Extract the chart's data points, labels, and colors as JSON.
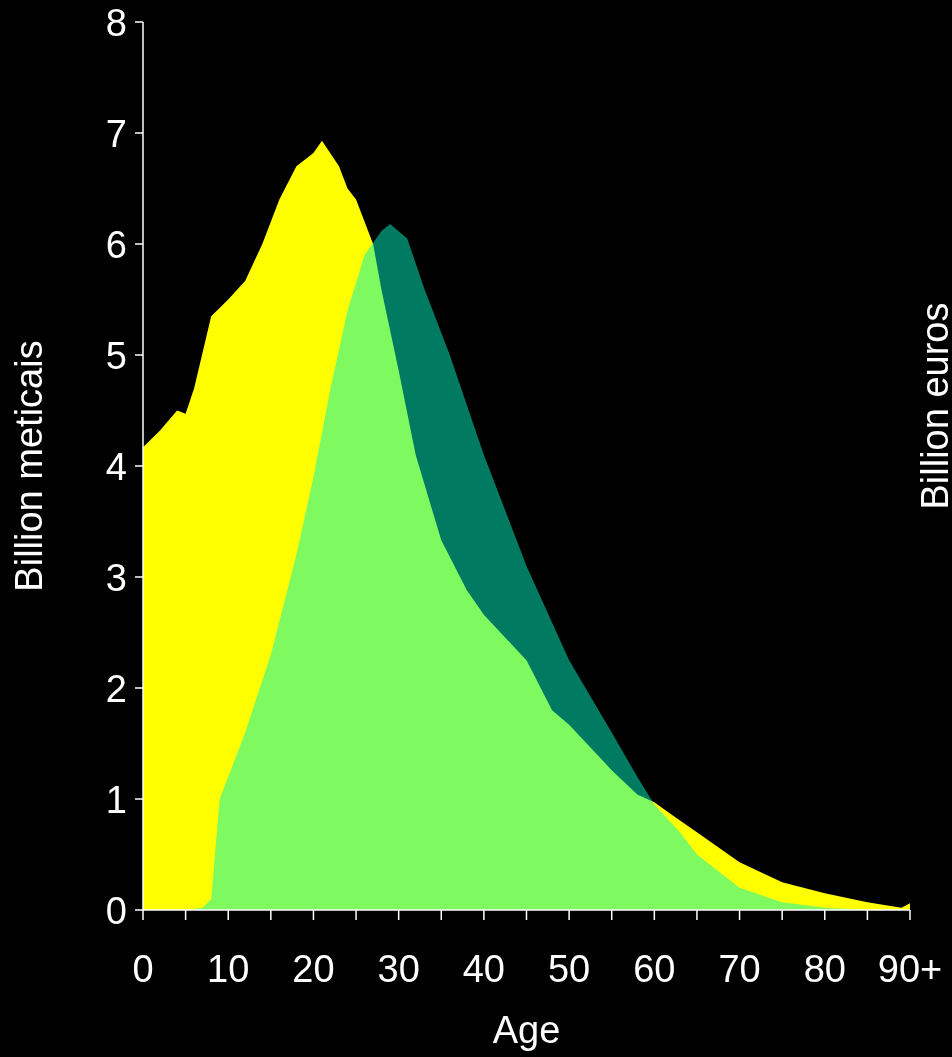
{
  "chart_data": {
    "type": "area",
    "xlabel": "Age",
    "ylabel": "Billion meticais",
    "y2label": "Billion euros",
    "xlim": [
      0,
      90
    ],
    "ylim": [
      0,
      8
    ],
    "xticks": [
      0,
      {
        "value": 5,
        "label": null
      },
      10,
      {
        "value": 15,
        "label": null
      },
      20,
      {
        "value": 25,
        "label": null
      },
      30,
      {
        "value": 35,
        "label": null
      },
      40,
      {
        "value": 45,
        "label": null
      },
      50,
      {
        "value": 55,
        "label": null
      },
      60,
      {
        "value": 65,
        "label": null
      },
      70,
      {
        "value": 75,
        "label": null
      },
      80,
      {
        "value": 85,
        "label": null
      },
      {
        "value": 90,
        "label": "90+"
      }
    ],
    "yticks": [
      0,
      1,
      2,
      3,
      4,
      5,
      6,
      7,
      8
    ],
    "grid": false,
    "series": [
      {
        "color": "#ffff00",
        "x": [
          0,
          2,
          4,
          5,
          6,
          8,
          10,
          12,
          14,
          16,
          18,
          20,
          21,
          23,
          24,
          25,
          27,
          28,
          30,
          32,
          35,
          38,
          40,
          45,
          48,
          50,
          55,
          58,
          60,
          62,
          65,
          70,
          75,
          80,
          85,
          89,
          90
        ],
        "values": [
          4.17,
          4.32,
          4.5,
          4.47,
          4.7,
          5.35,
          5.5,
          5.67,
          6.0,
          6.4,
          6.7,
          6.82,
          6.93,
          6.7,
          6.5,
          6.4,
          6.0,
          5.58,
          4.86,
          4.1,
          3.33,
          2.88,
          2.66,
          2.25,
          1.8,
          1.67,
          1.26,
          1.04,
          0.97,
          0.86,
          0.7,
          0.43,
          0.25,
          0.15,
          0.07,
          0.02,
          0.06
        ]
      },
      {
        "color": "#00f4c0",
        "x": [
          0,
          5,
          7,
          8,
          9,
          12,
          15,
          18,
          20,
          22,
          24,
          26,
          28,
          29,
          31,
          33,
          36,
          40,
          43,
          45,
          50,
          55,
          58,
          60,
          63,
          65,
          68,
          70,
          75,
          80,
          85,
          90
        ],
        "values": [
          0,
          0,
          0.02,
          0.1,
          1.0,
          1.6,
          2.3,
          3.2,
          3.9,
          4.7,
          5.4,
          5.9,
          6.12,
          6.18,
          6.05,
          5.6,
          5.0,
          4.1,
          3.5,
          3.1,
          2.25,
          1.6,
          1.2,
          0.95,
          0.7,
          0.5,
          0.32,
          0.2,
          0.07,
          0.02,
          0,
          0
        ]
      }
    ]
  }
}
